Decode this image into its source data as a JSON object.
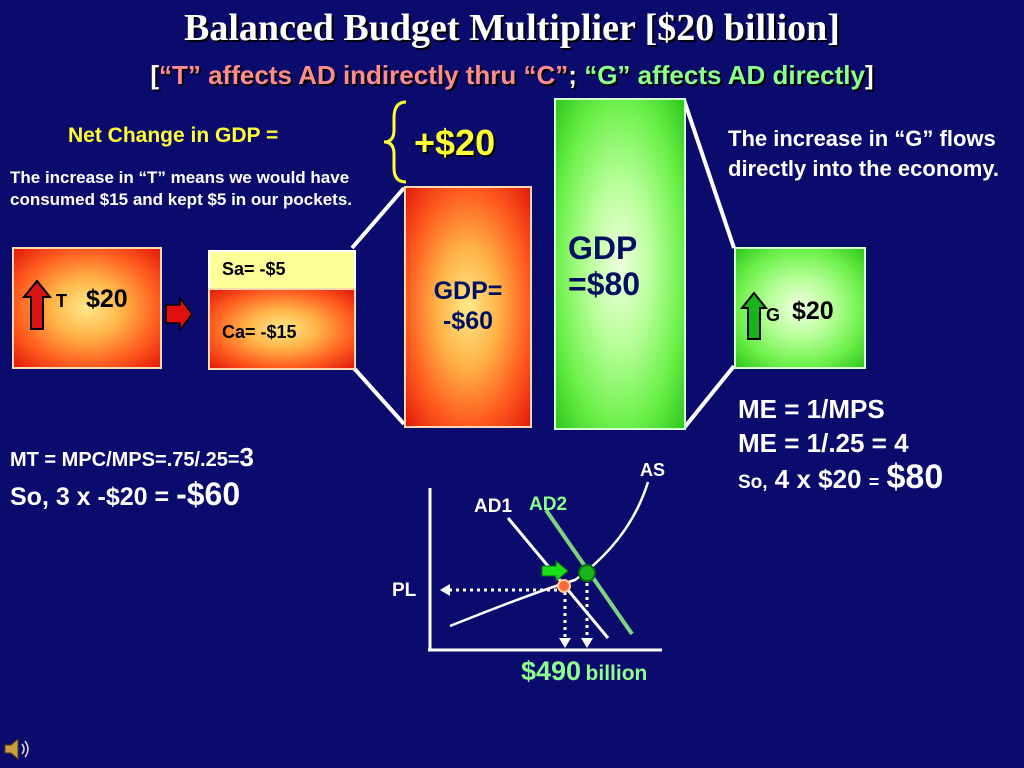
{
  "title": "Balanced Budget Multiplier [$20 billion]",
  "subtitle": {
    "open": "[",
    "t_part": "“T” affects AD indirectly thru “C”",
    "sep": ";",
    "g_part": "“G” affects AD directly",
    "close": "]"
  },
  "net_change": {
    "label": "Net Change in GDP =",
    "value": "+$20"
  },
  "tax_note": "The increase in “T” means we would have consumed $15 and kept  $5  in our pockets.",
  "g_note": "The increase in “G” flows directly  into the economy.",
  "t_box": {
    "letter": "T",
    "value": "$20"
  },
  "sa_box": "Sa= -$5",
  "ca_box": "Ca= -$15",
  "gdp_neg": {
    "line1": "GDP=",
    "line2": "-$60"
  },
  "gdp_pos": {
    "line1": "GDP",
    "line2": "=$80"
  },
  "g_box": {
    "letter": "G",
    "value": "$20"
  },
  "mt": {
    "formula": "MT = MPC/MPS=.75/.25=",
    "result": "3",
    "so": "So, 3 x -$20 = ",
    "so_result": "-$60"
  },
  "me": {
    "line1": "ME = 1/MPS",
    "line2": "ME = 1/.25 = 4",
    "so": "So,",
    "calc": " 4 x $20 ",
    "eq": "=",
    "result": "$80"
  },
  "graph": {
    "as_label": "AS",
    "ad1_label": "AD1",
    "ad2_label": "AD2",
    "pl_label": "PL",
    "gdp_value": "$490",
    "gdp_unit": "billion"
  },
  "colors": {
    "background": "#0b0b6e",
    "yellow": "#ffff33",
    "green_text": "#8cff8c",
    "pink_text": "#ff8c8c"
  }
}
